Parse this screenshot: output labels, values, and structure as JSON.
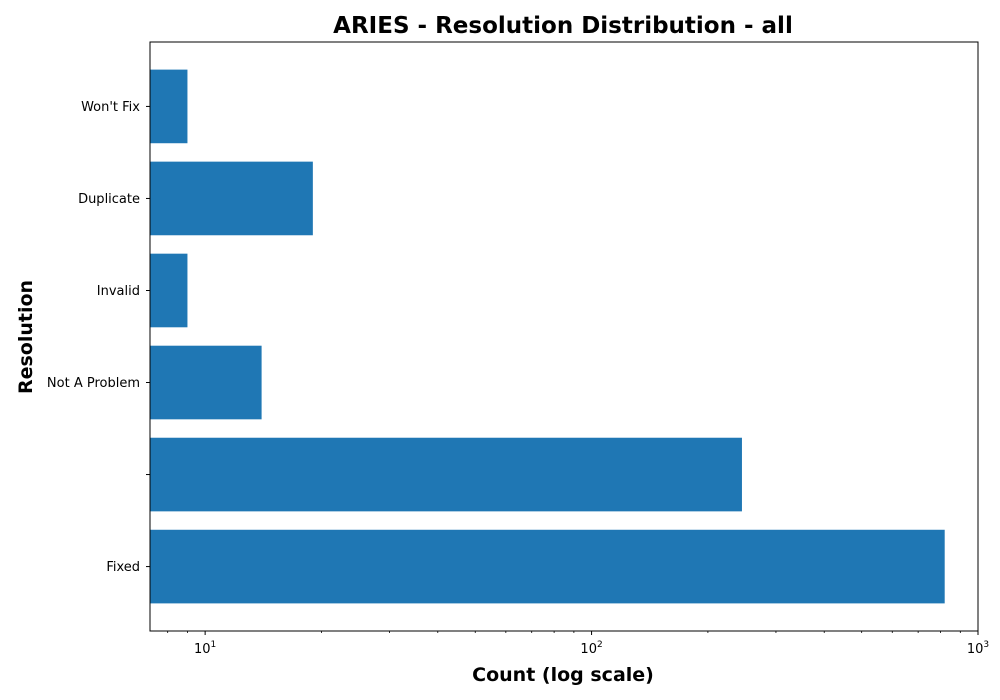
{
  "chart_data": {
    "type": "bar",
    "orientation": "horizontal",
    "title": "ARIES - Resolution Distribution - all",
    "xlabel": "Count (log scale)",
    "ylabel": "Resolution",
    "x_scale": "log",
    "xlim": [
      7.2,
      1000
    ],
    "x_ticks": [
      {
        "value": 10,
        "base": "10",
        "exp": "1"
      },
      {
        "value": 100,
        "base": "10",
        "exp": "2"
      },
      {
        "value": 1000,
        "base": "10",
        "exp": "3"
      }
    ],
    "categories": [
      "Fixed",
      "",
      "Not A Problem",
      "Invalid",
      "Duplicate",
      "Won't Fix"
    ],
    "values": [
      820,
      245,
      14,
      9,
      19,
      9
    ],
    "bar_color": "#1f77b4",
    "grid": false,
    "legend": false
  }
}
